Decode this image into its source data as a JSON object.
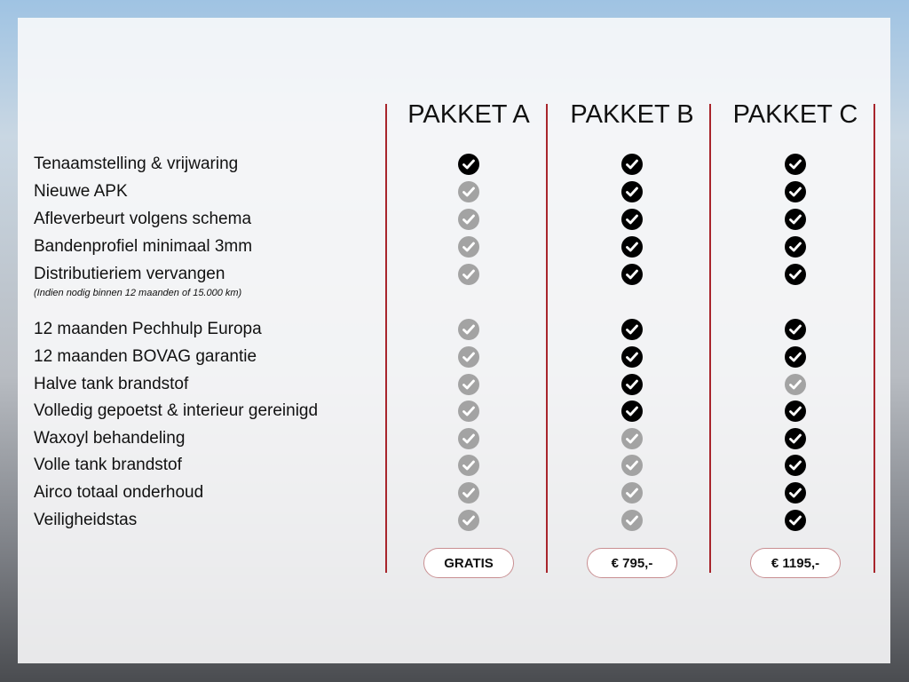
{
  "packages": [
    {
      "name": "PAKKET A",
      "price": "GRATIS"
    },
    {
      "name": "PAKKET B",
      "price": "€ 795,-"
    },
    {
      "name": "PAKKET C",
      "price": "€ 1195,-"
    }
  ],
  "features": [
    {
      "label": "Tenaamstelling & vrijwaring",
      "included": [
        true,
        true,
        true
      ]
    },
    {
      "label": "Nieuwe APK",
      "included": [
        false,
        true,
        true
      ]
    },
    {
      "label": "Afleverbeurt volgens schema",
      "included": [
        false,
        true,
        true
      ]
    },
    {
      "label": "Bandenprofiel minimaal 3mm",
      "included": [
        false,
        true,
        true
      ]
    },
    {
      "label": "Distributieriem vervangen",
      "included": [
        false,
        true,
        true
      ]
    },
    {
      "label": "12 maanden Pechhulp Europa",
      "included": [
        false,
        true,
        true
      ]
    },
    {
      "label": "12 maanden BOVAG garantie",
      "included": [
        false,
        true,
        true
      ]
    },
    {
      "label": "Halve tank brandstof",
      "included": [
        false,
        true,
        false
      ]
    },
    {
      "label": "Volledig gepoetst & interieur gereinigd",
      "included": [
        false,
        true,
        true
      ]
    },
    {
      "label": "Waxoyl behandeling",
      "included": [
        false,
        false,
        true
      ]
    },
    {
      "label": "Volle tank brandstof",
      "included": [
        false,
        false,
        true
      ]
    },
    {
      "label": "Airco totaal onderhoud",
      "included": [
        false,
        false,
        true
      ]
    },
    {
      "label": "Veiligheidstas",
      "included": [
        false,
        false,
        true
      ]
    }
  ],
  "distributie_note": "(Indien nodig binnen 12 maanden of 15.000 km)",
  "colors": {
    "divider": "#a8252c",
    "included": "#000000",
    "not_included": "#a3a3a3"
  },
  "icons": {
    "check": "check-circle-icon"
  }
}
